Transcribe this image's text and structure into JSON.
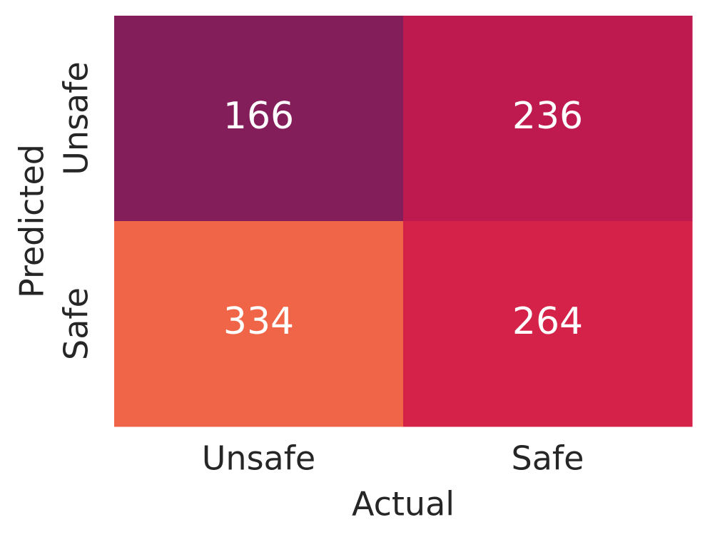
{
  "chart_data": {
    "type": "heatmap",
    "x_label": "Actual",
    "y_label": "Predicted",
    "x_categories": [
      "Unsafe",
      "Safe"
    ],
    "y_categories": [
      "Unsafe",
      "Safe"
    ],
    "values": [
      [
        166,
        236
      ],
      [
        334,
        264
      ]
    ],
    "colors": [
      [
        "#841e5a",
        "#bf1a50"
      ],
      [
        "#f06447",
        "#d42249"
      ]
    ]
  }
}
